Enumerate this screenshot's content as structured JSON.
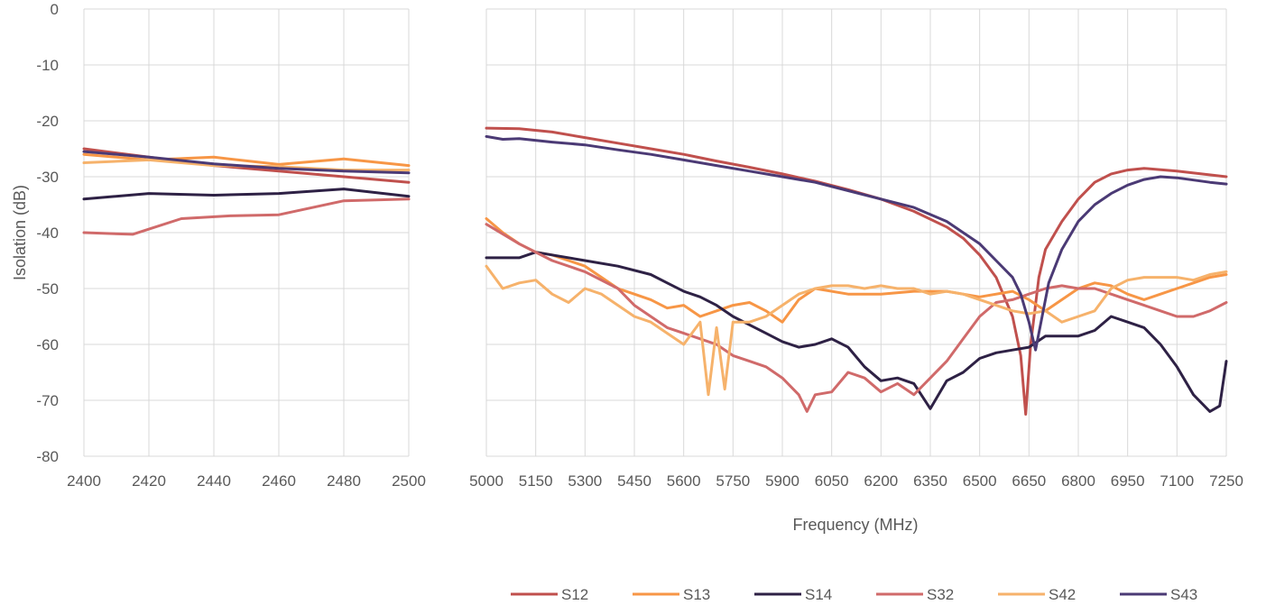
{
  "chart_data": [
    {
      "type": "line",
      "panel": "left",
      "xlabel": "",
      "ylabel": "Isolation (dB)",
      "xlim": [
        2400,
        2500
      ],
      "ylim": [
        -80,
        0
      ],
      "xticks": [
        "2400",
        "2420",
        "2440",
        "2460",
        "2480",
        "2500"
      ],
      "yticks": [
        "0",
        "-10",
        "-20",
        "-30",
        "-40",
        "-50",
        "-60",
        "-70",
        "-80"
      ],
      "grid": true,
      "series": [
        {
          "name": "S12",
          "color": "#c0504d",
          "x": [
            2400,
            2420,
            2440,
            2460,
            2480,
            2500
          ],
          "y": [
            -25,
            -26.5,
            -28,
            -29,
            -30,
            -31
          ]
        },
        {
          "name": "S13",
          "color": "#f79646",
          "x": [
            2400,
            2420,
            2440,
            2460,
            2480,
            2500
          ],
          "y": [
            -26,
            -27,
            -26.5,
            -27.8,
            -26.8,
            -28
          ]
        },
        {
          "name": "S14",
          "color": "#2e2145",
          "x": [
            2400,
            2420,
            2440,
            2460,
            2480,
            2500
          ],
          "y": [
            -34,
            -33,
            -33.3,
            -33,
            -32.2,
            -33.5
          ]
        },
        {
          "name": "S32",
          "color": "#d06a6a",
          "x": [
            2400,
            2415,
            2430,
            2445,
            2460,
            2480,
            2500
          ],
          "y": [
            -40,
            -40.3,
            -37.5,
            -37,
            -36.8,
            -34.3,
            -34
          ]
        },
        {
          "name": "S42",
          "color": "#f6b26b",
          "x": [
            2400,
            2420,
            2440,
            2460,
            2480,
            2500
          ],
          "y": [
            -27.5,
            -27,
            -28,
            -28.2,
            -28.8,
            -28.8
          ]
        },
        {
          "name": "S43",
          "color": "#4b3a75",
          "x": [
            2400,
            2420,
            2440,
            2460,
            2480,
            2500
          ],
          "y": [
            -25.5,
            -26.5,
            -27.7,
            -28.5,
            -29,
            -29.3
          ]
        }
      ]
    },
    {
      "type": "line",
      "panel": "right",
      "xlabel": "Frequency (MHz)",
      "ylabel": "",
      "xlim": [
        5000,
        7250
      ],
      "ylim": [
        -80,
        0
      ],
      "xticks": [
        "5000",
        "5150",
        "5300",
        "5450",
        "5600",
        "5750",
        "5900",
        "6050",
        "6200",
        "6350",
        "6500",
        "6650",
        "6800",
        "6950",
        "7100",
        "7250"
      ],
      "grid": true,
      "legend_position": "bottom",
      "series": [
        {
          "name": "S12",
          "color": "#c0504d",
          "x": [
            5000,
            5100,
            5200,
            5300,
            5400,
            5500,
            5600,
            5700,
            5800,
            5900,
            6000,
            6100,
            6200,
            6300,
            6400,
            6450,
            6500,
            6550,
            6600,
            6625,
            6640,
            6655,
            6680,
            6700,
            6750,
            6800,
            6850,
            6900,
            6950,
            7000,
            7100,
            7250
          ],
          "y": [
            -21.3,
            -21.4,
            -22,
            -23,
            -24,
            -25,
            -26,
            -27.2,
            -28.3,
            -29.5,
            -30.8,
            -32.3,
            -34,
            -36.2,
            -39,
            -41,
            -44,
            -48,
            -55,
            -62,
            -72.5,
            -60,
            -48,
            -43,
            -38,
            -34,
            -31,
            -29.5,
            -28.8,
            -28.5,
            -29,
            -30
          ]
        },
        {
          "name": "S13",
          "color": "#f79646",
          "x": [
            5000,
            5050,
            5100,
            5150,
            5200,
            5250,
            5300,
            5350,
            5400,
            5450,
            5500,
            5550,
            5600,
            5650,
            5700,
            5750,
            5800,
            5850,
            5900,
            5950,
            6000,
            6100,
            6200,
            6300,
            6400,
            6500,
            6600,
            6650,
            6700,
            6750,
            6800,
            6850,
            6900,
            6950,
            7000,
            7050,
            7100,
            7150,
            7200,
            7250
          ],
          "y": [
            -37.5,
            -40,
            -42,
            -43.5,
            -44,
            -45,
            -46,
            -48,
            -50,
            -51,
            -52,
            -53.5,
            -53,
            -55,
            -54,
            -53,
            -52.5,
            -54,
            -56,
            -52,
            -50,
            -51,
            -51,
            -50.5,
            -50.5,
            -51.5,
            -50.5,
            -52,
            -54,
            -52,
            -50,
            -49,
            -49.5,
            -51,
            -52,
            -51,
            -50,
            -49,
            -48,
            -47.5
          ]
        },
        {
          "name": "S14",
          "color": "#2e2145",
          "x": [
            5000,
            5100,
            5150,
            5200,
            5300,
            5400,
            5500,
            5550,
            5600,
            5650,
            5700,
            5750,
            5800,
            5850,
            5900,
            5950,
            6000,
            6050,
            6100,
            6150,
            6200,
            6250,
            6300,
            6350,
            6375,
            6400,
            6450,
            6500,
            6550,
            6600,
            6650,
            6700,
            6750,
            6800,
            6850,
            6900,
            6950,
            7000,
            7050,
            7100,
            7150,
            7200,
            7230,
            7250
          ],
          "y": [
            -44.5,
            -44.5,
            -43.5,
            -44,
            -45,
            -46,
            -47.5,
            -49,
            -50.5,
            -51.5,
            -53,
            -55,
            -56.5,
            -58,
            -59.5,
            -60.5,
            -60,
            -59,
            -60.5,
            -64,
            -66.5,
            -66,
            -67,
            -71.5,
            -69,
            -66.5,
            -65,
            -62.5,
            -61.5,
            -61,
            -60.5,
            -58.5,
            -58.5,
            -58.5,
            -57.5,
            -55,
            -56,
            -57,
            -60,
            -64,
            -69,
            -72,
            -71,
            -63
          ]
        },
        {
          "name": "S32",
          "color": "#d06a6a",
          "x": [
            5000,
            5100,
            5200,
            5300,
            5400,
            5450,
            5500,
            5550,
            5600,
            5650,
            5700,
            5750,
            5800,
            5850,
            5900,
            5950,
            5975,
            6000,
            6050,
            6100,
            6150,
            6200,
            6250,
            6300,
            6350,
            6400,
            6450,
            6500,
            6550,
            6600,
            6650,
            6700,
            6750,
            6800,
            6850,
            6900,
            6950,
            7000,
            7050,
            7100,
            7150,
            7200,
            7250
          ],
          "y": [
            -38.5,
            -42,
            -45,
            -47,
            -50,
            -53,
            -55,
            -57,
            -58,
            -59,
            -60,
            -62,
            -63,
            -64,
            -66,
            -69,
            -72,
            -69,
            -68.5,
            -65,
            -66,
            -68.5,
            -67,
            -69,
            -66,
            -63,
            -59,
            -55,
            -52.5,
            -52,
            -51,
            -50,
            -49.5,
            -50,
            -50,
            -51,
            -52,
            -53,
            -54,
            -55,
            -55,
            -54,
            -52.5
          ]
        },
        {
          "name": "S42",
          "color": "#f6b26b",
          "x": [
            5000,
            5050,
            5100,
            5150,
            5200,
            5250,
            5300,
            5350,
            5400,
            5450,
            5500,
            5550,
            5600,
            5650,
            5675,
            5700,
            5725,
            5750,
            5800,
            5850,
            5900,
            5950,
            6000,
            6050,
            6100,
            6150,
            6200,
            6250,
            6300,
            6350,
            6400,
            6450,
            6500,
            6550,
            6600,
            6650,
            6700,
            6750,
            6800,
            6850,
            6900,
            6950,
            7000,
            7050,
            7100,
            7150,
            7200,
            7250
          ],
          "y": [
            -46,
            -50,
            -49,
            -48.5,
            -51,
            -52.5,
            -50,
            -51,
            -53,
            -55,
            -56,
            -58,
            -60,
            -56,
            -69,
            -57,
            -68,
            -56,
            -56,
            -55,
            -53,
            -51,
            -50,
            -49.5,
            -49.5,
            -50,
            -49.5,
            -50,
            -50,
            -51,
            -50.5,
            -51,
            -52,
            -53,
            -54,
            -54.5,
            -54,
            -56,
            -55,
            -54,
            -50,
            -48.5,
            -48,
            -48,
            -48,
            -48.5,
            -47.5,
            -47
          ]
        },
        {
          "name": "S43",
          "color": "#4b3a75",
          "x": [
            5000,
            5050,
            5100,
            5200,
            5300,
            5400,
            5500,
            5600,
            5700,
            5800,
            5900,
            6000,
            6100,
            6200,
            6300,
            6400,
            6450,
            6500,
            6550,
            6600,
            6625,
            6650,
            6670,
            6690,
            6710,
            6750,
            6800,
            6850,
            6900,
            6950,
            7000,
            7050,
            7100,
            7150,
            7200,
            7250
          ],
          "y": [
            -22.8,
            -23.3,
            -23.2,
            -23.8,
            -24.3,
            -25.2,
            -26,
            -27,
            -28,
            -29,
            -30,
            -31,
            -32.5,
            -34,
            -35.5,
            -38,
            -40,
            -42,
            -45,
            -48,
            -51,
            -56,
            -61,
            -55,
            -49,
            -43,
            -38,
            -35,
            -33,
            -31.5,
            -30.5,
            -30,
            -30.2,
            -30.6,
            -31,
            -31.3
          ]
        }
      ]
    }
  ]
}
